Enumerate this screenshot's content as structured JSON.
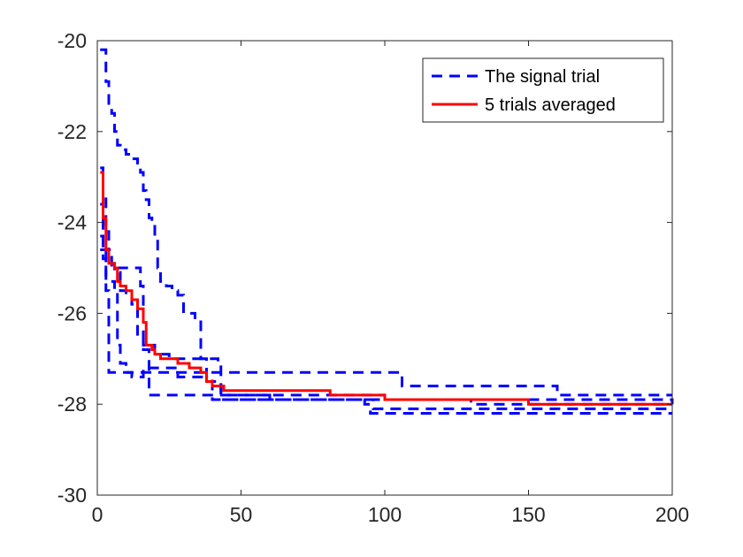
{
  "chart_data": {
    "type": "line",
    "title": "",
    "xlabel": "",
    "ylabel": "",
    "xlim": [
      0,
      200
    ],
    "ylim": [
      -30,
      -20
    ],
    "x_ticks": [
      0,
      50,
      100,
      150,
      200
    ],
    "y_ticks": [
      -20,
      -22,
      -24,
      -26,
      -28,
      -30
    ],
    "x_tick_labels": [
      "0",
      "50",
      "100",
      "150",
      "200"
    ],
    "y_tick_labels": [
      "-20",
      "-22",
      "-24",
      "-26",
      "-28",
      "-30"
    ],
    "grid": false,
    "legend": {
      "placement": "top-right",
      "entries": [
        {
          "label": "The signal trial",
          "color": "#0000ff",
          "style": "dashed"
        },
        {
          "label": "5 trials averaged",
          "color": "#ff0000",
          "style": "solid"
        }
      ]
    },
    "series": [
      {
        "legend_index": 0,
        "color": "#0000ff",
        "style": "dashed",
        "x": [
          1,
          3,
          4,
          5,
          6,
          7,
          8,
          10,
          12,
          14,
          15,
          16,
          17,
          18,
          19,
          20,
          21,
          22,
          24,
          26,
          28,
          30,
          32,
          34,
          36,
          38,
          40,
          200
        ],
        "y": [
          -20.2,
          -20.9,
          -21.5,
          -21.6,
          -22.0,
          -22.3,
          -22.4,
          -22.5,
          -22.6,
          -22.8,
          -22.9,
          -23.3,
          -23.5,
          -23.9,
          -24.0,
          -24.3,
          -25.0,
          -25.3,
          -25.4,
          -25.5,
          -25.6,
          -26.0,
          -26.0,
          -26.1,
          -27.0,
          -27.4,
          -27.9,
          -28.0
        ]
      },
      {
        "legend_index": 0,
        "color": "#0000ff",
        "style": "dashed",
        "x": [
          1,
          2,
          3,
          5,
          6,
          7,
          8,
          10,
          12,
          14,
          16,
          18,
          25,
          28,
          30,
          32,
          34,
          36,
          38,
          40,
          41,
          42,
          43,
          60,
          80,
          95,
          96,
          120,
          150,
          200
        ],
        "y": [
          -23.6,
          -24.8,
          -25.3,
          -25.3,
          -25.5,
          -26.7,
          -27.1,
          -27.3,
          -27.4,
          -27.4,
          -27.2,
          -27.2,
          -27.2,
          -27.4,
          -27.4,
          -27.4,
          -27.4,
          -27.4,
          -27.5,
          -27.5,
          -27.5,
          -27.5,
          -27.8,
          -27.9,
          -27.9,
          -27.9,
          -28.1,
          -28.1,
          -28.1,
          -28.1
        ]
      },
      {
        "legend_index": 0,
        "color": "#0000ff",
        "style": "dashed",
        "x": [
          1,
          2,
          3,
          4,
          6,
          8,
          10,
          12,
          14,
          16,
          18,
          20,
          25,
          30,
          40,
          41,
          42,
          43,
          50,
          60,
          80,
          92,
          93,
          95,
          100,
          150,
          200
        ],
        "y": [
          -22.8,
          -23.4,
          -24.2,
          -24.9,
          -25.1,
          -25.5,
          -25.6,
          -25.8,
          -26.5,
          -26.7,
          -26.7,
          -26.9,
          -27.0,
          -27.0,
          -27.0,
          -27.0,
          -27.1,
          -27.9,
          -27.9,
          -27.9,
          -27.9,
          -27.9,
          -28.0,
          -28.2,
          -28.2,
          -28.2,
          -28.2
        ]
      },
      {
        "legend_index": 0,
        "color": "#0000ff",
        "style": "dashed",
        "x": [
          1,
          2,
          3,
          4,
          5,
          10,
          16,
          30,
          43,
          50,
          60,
          80,
          104,
          106,
          110,
          130,
          160,
          200
        ],
        "y": [
          -24.3,
          -24.5,
          -25.5,
          -27.3,
          -27.3,
          -27.3,
          -27.3,
          -27.3,
          -27.3,
          -27.3,
          -27.3,
          -27.3,
          -27.3,
          -27.6,
          -27.6,
          -27.6,
          -27.8,
          -27.8
        ]
      },
      {
        "legend_index": 0,
        "color": "#0000ff",
        "style": "dashed",
        "x": [
          1,
          4,
          5,
          8,
          10,
          12,
          13,
          15,
          16,
          18,
          25,
          40,
          43,
          60,
          80,
          100,
          130,
          150,
          200
        ],
        "y": [
          -24.6,
          -24.6,
          -25.0,
          -25.0,
          -25.0,
          -25.0,
          -25.0,
          -25.4,
          -26.8,
          -27.8,
          -27.8,
          -27.8,
          -27.8,
          -27.8,
          -27.8,
          -27.9,
          -28.0,
          -28.0,
          -28.0
        ]
      },
      {
        "legend_index": 1,
        "color": "#ff0000",
        "style": "solid",
        "x": [
          1,
          2,
          3,
          4,
          5,
          6,
          7,
          8,
          10,
          12,
          14,
          16,
          17,
          18,
          19,
          20,
          22,
          24,
          28,
          32,
          36,
          38,
          40,
          42,
          44,
          50,
          60,
          80,
          81,
          83,
          100,
          110,
          130,
          150,
          200
        ],
        "y": [
          -22.9,
          -23.9,
          -24.6,
          -24.9,
          -24.9,
          -25.0,
          -25.3,
          -25.4,
          -25.5,
          -25.7,
          -25.9,
          -26.2,
          -26.7,
          -26.7,
          -26.8,
          -26.9,
          -27.0,
          -27.0,
          -27.1,
          -27.2,
          -27.3,
          -27.5,
          -27.6,
          -27.6,
          -27.7,
          -27.7,
          -27.7,
          -27.7,
          -27.8,
          -27.8,
          -27.9,
          -27.9,
          -27.9,
          -28.0,
          -28.0
        ]
      }
    ]
  }
}
